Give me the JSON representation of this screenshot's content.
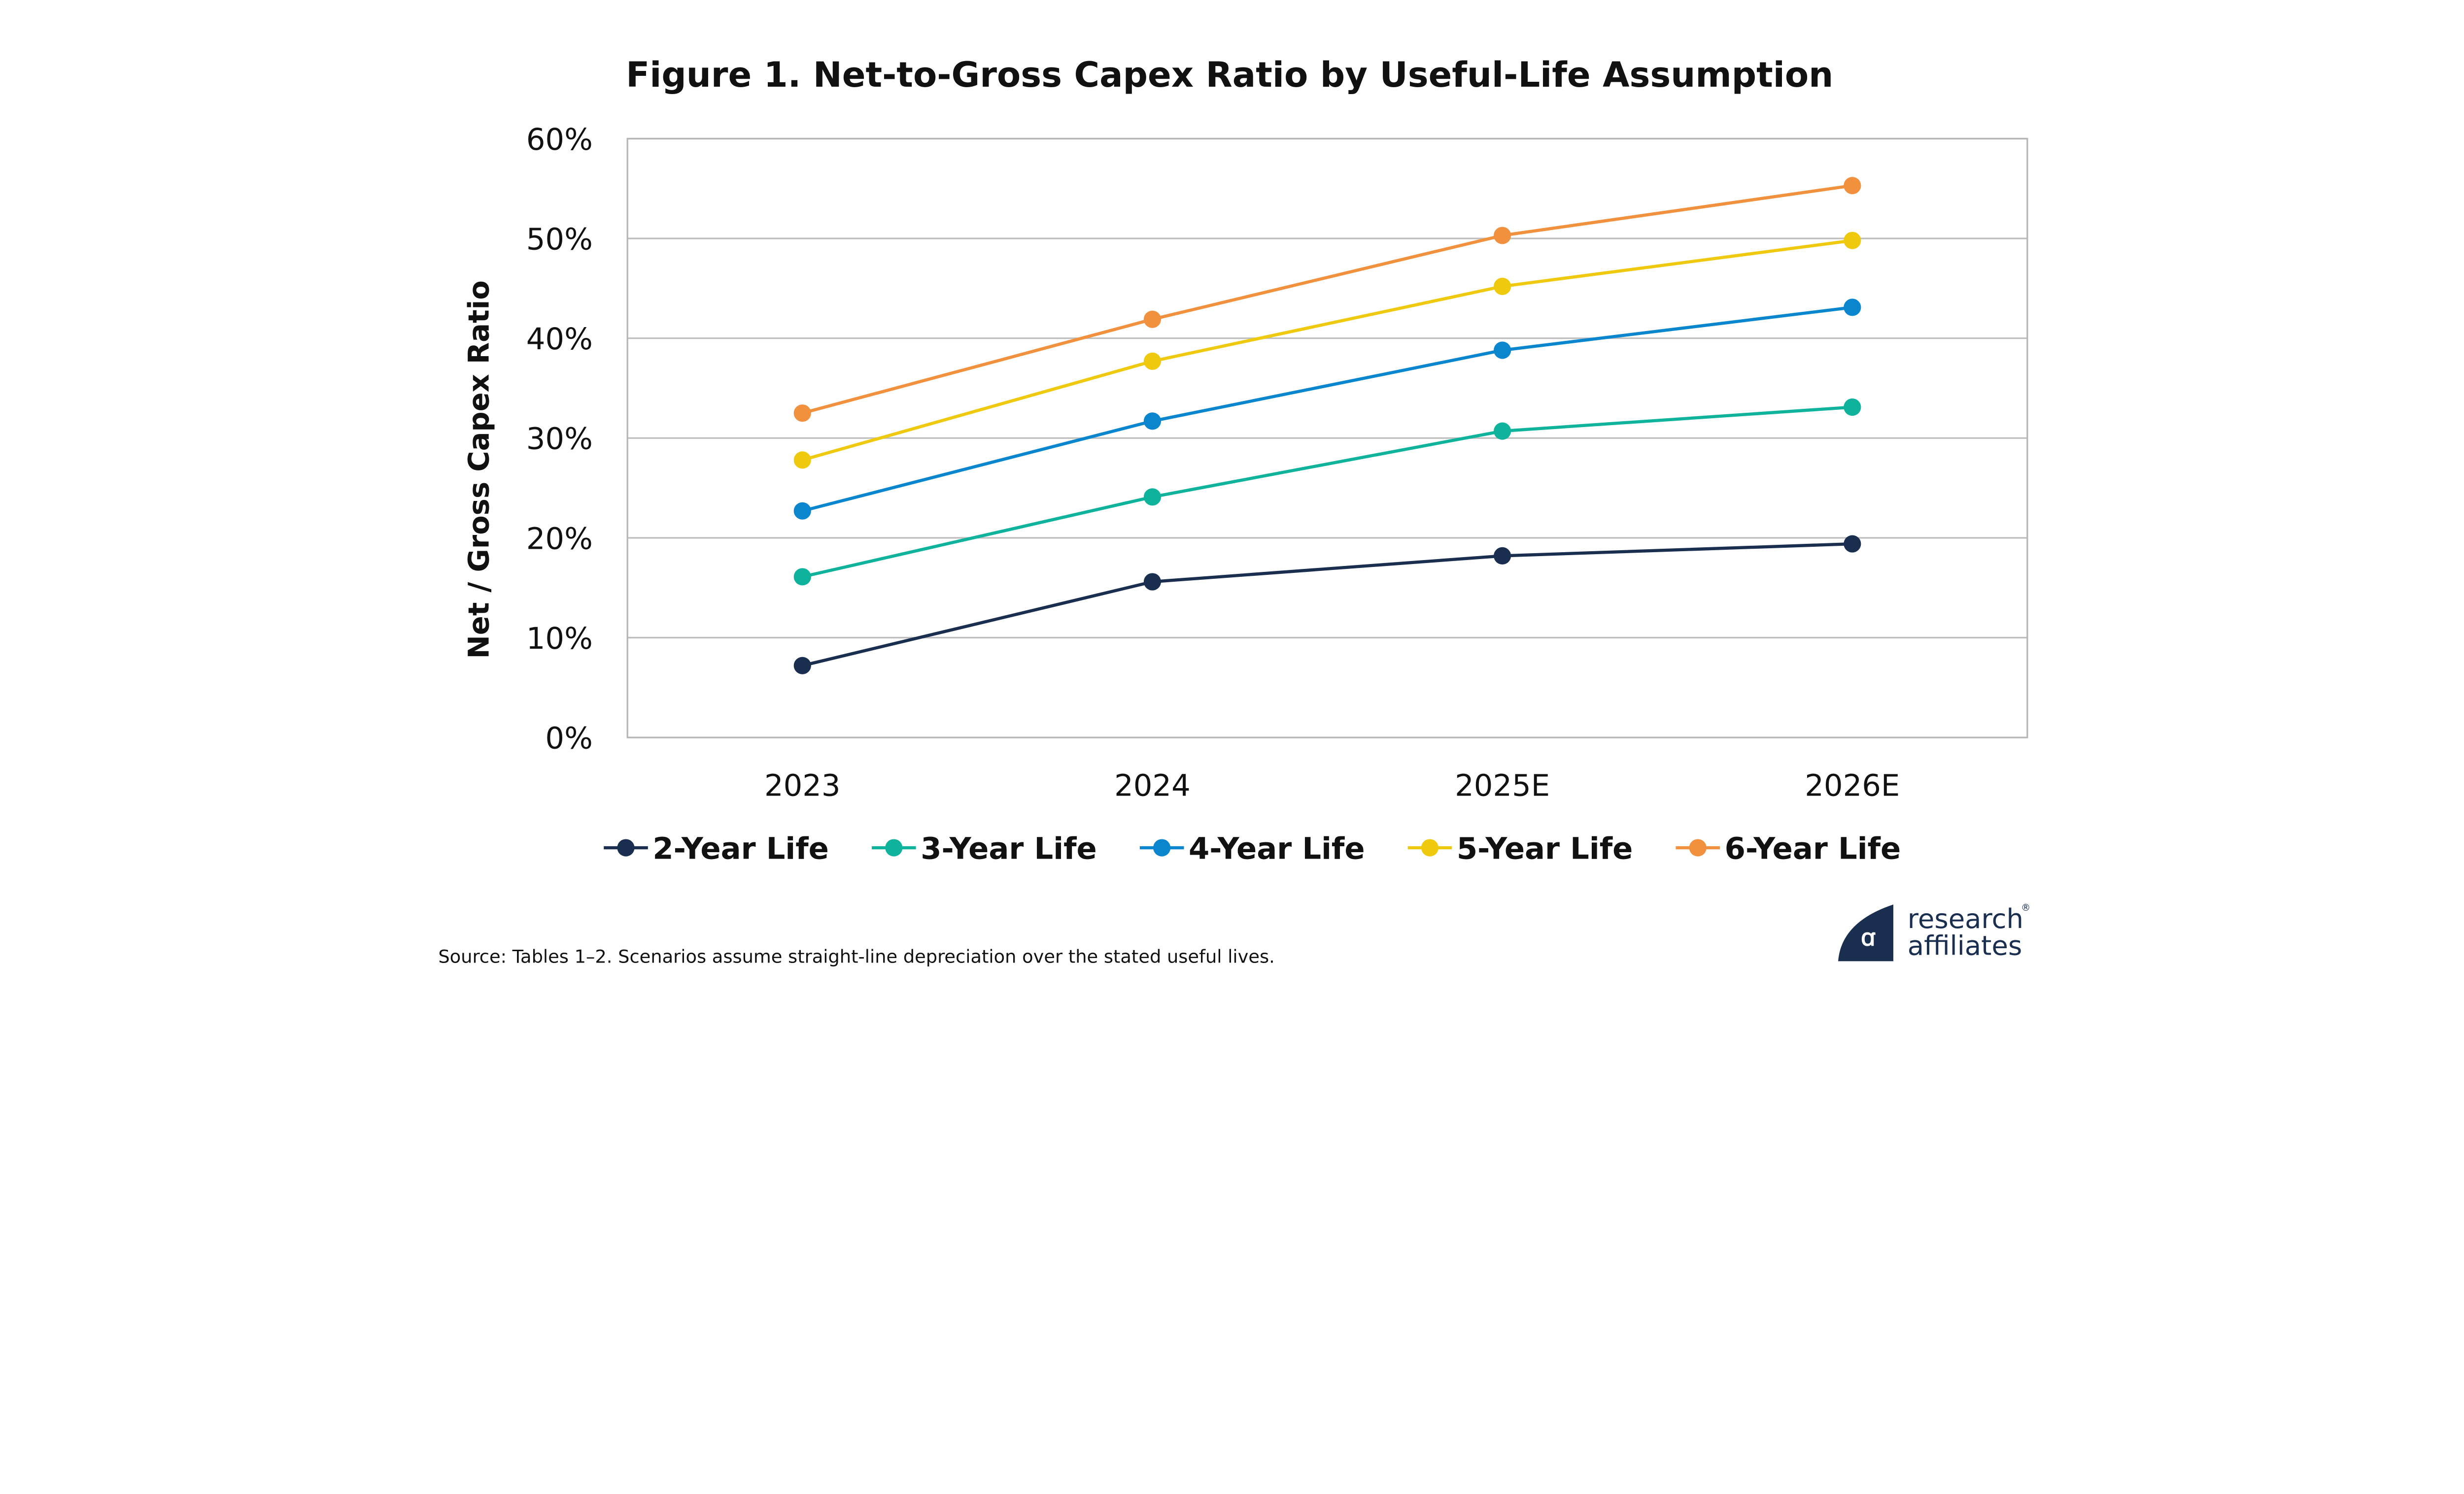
{
  "chart_data": {
    "type": "line",
    "title": "Figure 1.  Net-to-Gross Capex Ratio by Useful-Life Assumption",
    "xlabel": "",
    "ylabel": "Net / Gross Capex Ratio",
    "ylim": [
      0,
      60
    ],
    "yticks": [
      "0%",
      "10%",
      "20%",
      "30%",
      "40%",
      "50%",
      "60%"
    ],
    "grid": true,
    "legend_position": "bottom",
    "categories": [
      "2023",
      "2024",
      "2025E",
      "2026E"
    ],
    "series": [
      {
        "name": "2-Year Life",
        "color": "#1a2e4f",
        "values": [
          7.2,
          15.6,
          18.2,
          19.4
        ]
      },
      {
        "name": "3-Year Life",
        "color": "#0fb39c",
        "values": [
          16.1,
          24.1,
          30.7,
          33.1
        ]
      },
      {
        "name": "4-Year Life",
        "color": "#0a86cf",
        "values": [
          22.7,
          31.7,
          38.8,
          43.1
        ]
      },
      {
        "name": "5-Year Life",
        "color": "#efc90e",
        "values": [
          27.8,
          37.7,
          45.2,
          49.8
        ]
      },
      {
        "name": "6-Year Life",
        "color": "#f2913d",
        "values": [
          32.5,
          41.9,
          50.3,
          55.3
        ]
      }
    ]
  },
  "source": "Source: Tables 1–2. Scenarios assume straight-line depreciation over the stated useful lives.",
  "logo": {
    "line1": "research",
    "line2": "affiliates",
    "mark": "®"
  }
}
